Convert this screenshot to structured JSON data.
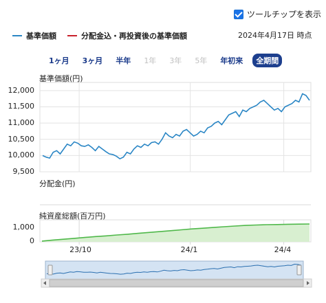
{
  "controls": {
    "show_tooltip_label": "ツールチップを表示",
    "show_tooltip_checked": true
  },
  "legend": {
    "series": [
      {
        "label": "基準価額",
        "color": "#2a86c5"
      },
      {
        "label": "分配金込・再投資後の基準価額",
        "color": "#c8202a"
      }
    ],
    "as_of": "2024年4月17日 時点"
  },
  "ranges": {
    "items": [
      {
        "label": "1ヶ月",
        "state": "enabled"
      },
      {
        "label": "3ヶ月",
        "state": "enabled"
      },
      {
        "label": "半年",
        "state": "enabled"
      },
      {
        "label": "1年",
        "state": "disabled"
      },
      {
        "label": "3年",
        "state": "disabled"
      },
      {
        "label": "5年",
        "state": "disabled"
      },
      {
        "label": "年初来",
        "state": "enabled"
      },
      {
        "label": "全期間",
        "state": "active"
      }
    ]
  },
  "panels": {
    "nav_title": "基準価額(円)",
    "dist_title": "分配金(円)",
    "aum_title": "純資産総額(百万円)"
  },
  "chart_data": [
    {
      "type": "line",
      "ylabel": "基準価額(円)",
      "yticks": [
        "12,000",
        "11,500",
        "11,000",
        "10,500",
        "10,000",
        "9,500"
      ],
      "ylim": [
        9500,
        12250
      ],
      "series": [
        {
          "name": "基準価額",
          "color": "#2a86c5",
          "values": [
            10000,
            9950,
            9920,
            10100,
            10150,
            10050,
            10200,
            10350,
            10300,
            10420,
            10380,
            10300,
            10280,
            10330,
            10250,
            10150,
            10280,
            10200,
            10120,
            10050,
            10030,
            9980,
            9900,
            9950,
            10100,
            10050,
            10200,
            10300,
            10250,
            10350,
            10300,
            10400,
            10420,
            10350,
            10500,
            10700,
            10600,
            10550,
            10650,
            10600,
            10750,
            10800,
            10700,
            10600,
            10650,
            10750,
            10700,
            10850,
            10900,
            11000,
            11050,
            10950,
            11100,
            11250,
            11300,
            11350,
            11200,
            11400,
            11350,
            11450,
            11500,
            11550,
            11650,
            11700,
            11600,
            11500,
            11400,
            11450,
            11350,
            11500,
            11550,
            11600,
            11700,
            11650,
            11900,
            11850,
            11700
          ]
        }
      ],
      "grid": true
    },
    {
      "type": "area",
      "ylabel": "純資産総額(百万円)",
      "yticks": [
        "1,000",
        "0"
      ],
      "ylim": [
        0,
        1500
      ],
      "series": [
        {
          "name": "純資産総額",
          "color": "#4fb84a",
          "values": [
            50,
            120,
            180,
            240,
            300,
            360,
            410,
            470,
            520,
            580,
            640,
            700,
            760,
            820,
            880,
            930,
            980,
            1030,
            1080,
            1120,
            1150,
            1170,
            1180,
            1200,
            1210,
            1220
          ]
        }
      ],
      "x_ticks": [
        "23/10",
        "24/1",
        "24/4"
      ]
    }
  ],
  "navigator": {
    "labels": [
      "23/10",
      "24/4"
    ],
    "handle_glyph": "III"
  }
}
